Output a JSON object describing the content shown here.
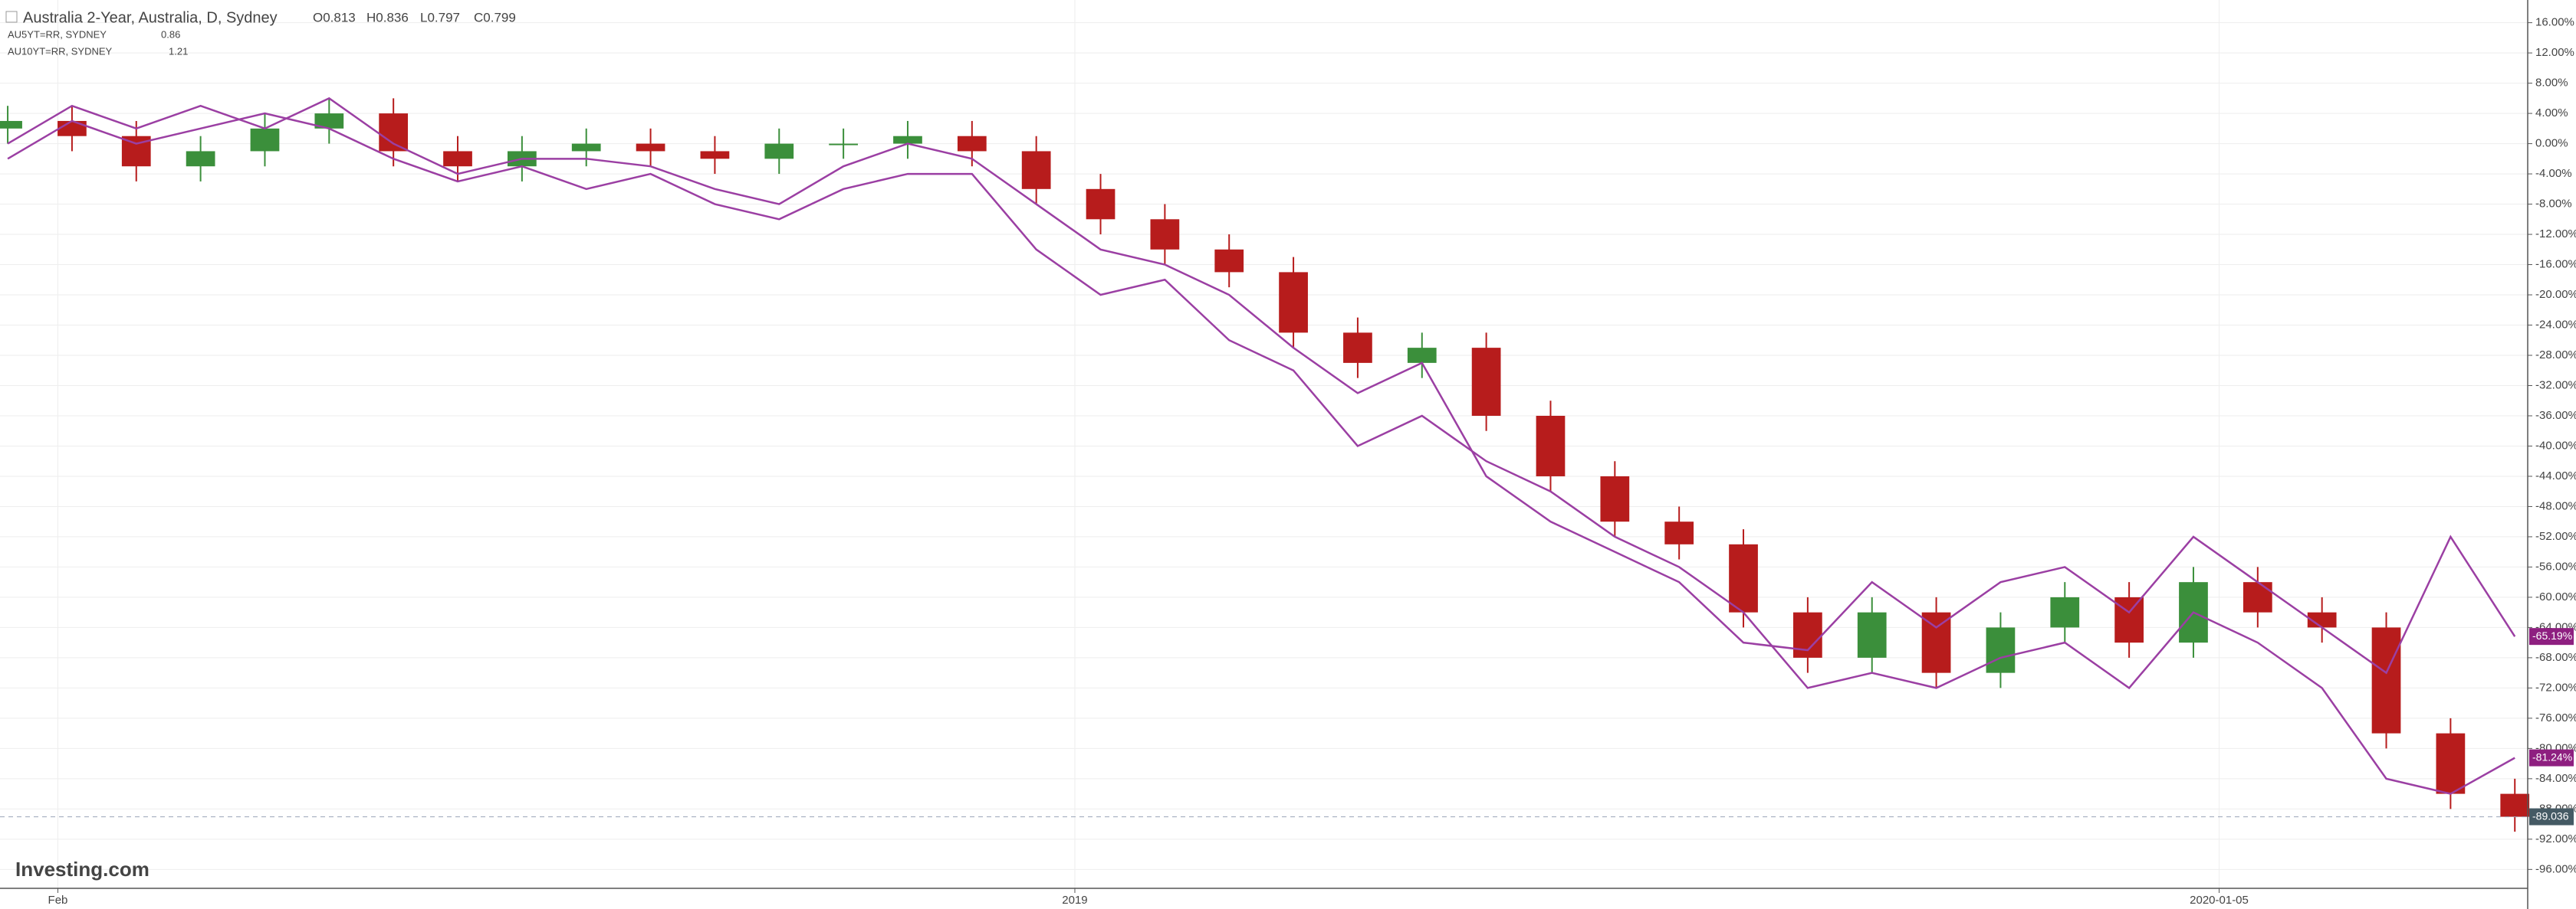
{
  "chart_data": {
    "type": "candlestick",
    "title": "Australia 2-Year, Australia, D, Sydney",
    "legend_values": [
      "O0.813",
      "H0.836",
      "L0.797",
      "C0.799"
    ],
    "source": "Investing.com",
    "last_label": "-89.036",
    "up_color": "#3b8f3b",
    "down_color": "#b71c1c",
    "open": [
      2,
      3,
      1,
      -3,
      -1,
      2,
      4,
      -1,
      -3,
      -1,
      0,
      -1,
      -2,
      0,
      0,
      1,
      -1,
      -6,
      -10,
      -14,
      -17,
      -25,
      -29,
      -27,
      -36,
      -44,
      -50,
      -53,
      -62,
      -68,
      -62,
      -70,
      -64,
      -60,
      -66,
      -58,
      -62,
      -64,
      -78,
      -86
    ],
    "high": [
      5,
      5,
      3,
      1,
      4,
      6,
      6,
      1,
      1,
      2,
      2,
      1,
      2,
      2,
      3,
      3,
      1,
      -4,
      -8,
      -12,
      -15,
      -23,
      -25,
      -25,
      -34,
      -42,
      -48,
      -51,
      -60,
      -60,
      -60,
      -62,
      -58,
      -58,
      -56,
      -56,
      -60,
      -62,
      -76,
      -84
    ],
    "low": [
      0,
      -1,
      -5,
      -5,
      -3,
      0,
      -3,
      -5,
      -5,
      -3,
      -3,
      -4,
      -4,
      -2,
      -2,
      -3,
      -8,
      -12,
      -16,
      -19,
      -27,
      -31,
      -31,
      -38,
      -46,
      -52,
      -55,
      -64,
      -70,
      -70,
      -72,
      -72,
      -66,
      -68,
      -68,
      -64,
      -66,
      -80,
      -88,
      -91
    ],
    "close": [
      3,
      1,
      -3,
      -1,
      2,
      4,
      -1,
      -3,
      -1,
      0,
      -1,
      -2,
      0,
      0,
      1,
      -1,
      -6,
      -10,
      -14,
      -17,
      -25,
      -29,
      -27,
      -36,
      -44,
      -50,
      -53,
      -62,
      -68,
      -62,
      -70,
      -64,
      -60,
      -66,
      -58,
      -62,
      -64,
      -78,
      -86,
      -89.036
    ],
    "series": [
      {
        "name": "AU5YT=RR, SYDNEY",
        "legend_value": 0.86,
        "color": "#9b3fa3",
        "last_label": "-81.24%",
        "values": [
          -2,
          3,
          0,
          2,
          4,
          2,
          -2,
          -5,
          -3,
          -6,
          -4,
          -8,
          -10,
          -6,
          -4,
          -4,
          -14,
          -20,
          -18,
          -26,
          -30,
          -40,
          -36,
          -42,
          -46,
          -52,
          -56,
          -62,
          -72,
          -70,
          -72,
          -68,
          -66,
          -72,
          -62,
          -66,
          -72,
          -84,
          -86,
          -81.24
        ]
      },
      {
        "name": "AU10YT=RR, SYDNEY",
        "legend_value": 1.21,
        "color": "#9b3fa3",
        "last_label": "-65.19%",
        "values": [
          0,
          5,
          2,
          5,
          2,
          6,
          0,
          -4,
          -2,
          -2,
          -3,
          -6,
          -8,
          -3,
          0,
          -2,
          -8,
          -14,
          -16,
          -20,
          -27,
          -33,
          -29,
          -44,
          -50,
          -54,
          -58,
          -66,
          -67,
          -58,
          -64,
          -58,
          -56,
          -62,
          -52,
          -58,
          -64,
          -70,
          -52,
          -65.19
        ]
      }
    ],
    "xlim": [
      -0.12,
      39.2
    ],
    "xticks": [
      {
        "value": 0.78,
        "label": "Feb"
      },
      {
        "value": 16.6,
        "label": "2019"
      },
      {
        "value": 34.4,
        "label": "2020-01-05"
      }
    ],
    "ylim": [
      -98.5,
      19
    ],
    "yticks": [
      {
        "value": 16,
        "label": "16.00%"
      },
      {
        "value": 12,
        "label": "12.00%"
      },
      {
        "value": 8,
        "label": "8.00%"
      },
      {
        "value": 4,
        "label": "4.00%"
      },
      {
        "value": 0,
        "label": "0.00%"
      },
      {
        "value": -4,
        "label": "-4.00%"
      },
      {
        "value": -8,
        "label": "-8.00%"
      },
      {
        "value": -12,
        "label": "-12.00%"
      },
      {
        "value": -16,
        "label": "-16.00%"
      },
      {
        "value": -20,
        "label": "-20.00%"
      },
      {
        "value": -24,
        "label": "-24.00%"
      },
      {
        "value": -28,
        "label": "-28.00%"
      },
      {
        "value": -32,
        "label": "-32.00%"
      },
      {
        "value": -36,
        "label": "-36.00%"
      },
      {
        "value": -40,
        "label": "-40.00%"
      },
      {
        "value": -44,
        "label": "-44.00%"
      },
      {
        "value": -48,
        "label": "-48.00%"
      },
      {
        "value": -52,
        "label": "-52.00%"
      },
      {
        "value": -56,
        "label": "-56.00%"
      },
      {
        "value": -60,
        "label": "-60.00%"
      },
      {
        "value": -64,
        "label": "-64.00%"
      },
      {
        "value": -68,
        "label": "-68.00%"
      },
      {
        "value": -72,
        "label": "-72.00%"
      },
      {
        "value": -76,
        "label": "-76.00%"
      },
      {
        "value": -80,
        "label": "-80.00%"
      },
      {
        "value": -84,
        "label": "-84.00%"
      },
      {
        "value": -88,
        "label": "-88.00%"
      },
      {
        "value": -92,
        "label": "-92.00%"
      },
      {
        "value": -96,
        "label": "-96.00%"
      }
    ],
    "grid": true
  }
}
